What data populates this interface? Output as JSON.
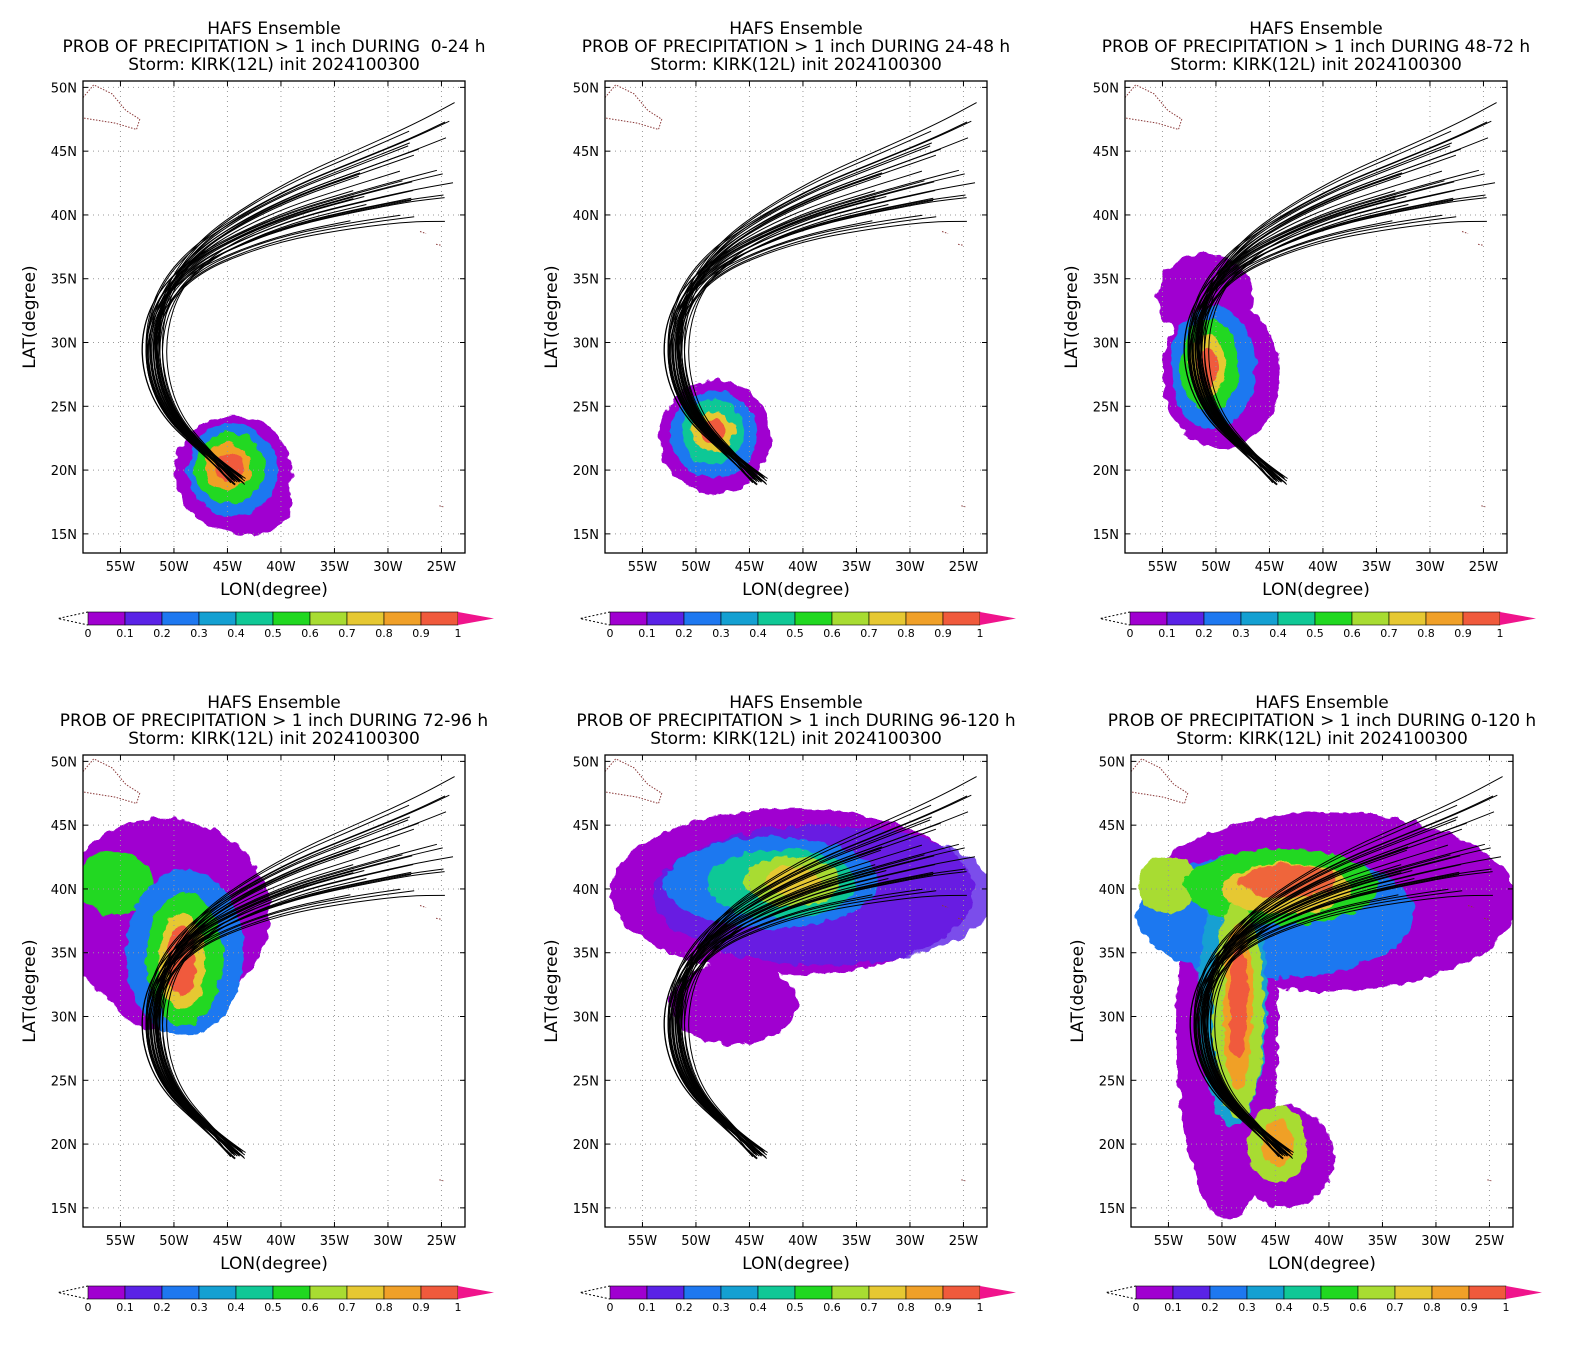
{
  "figure": {
    "colorbar": {
      "ticks": [
        "0",
        "0.1",
        "0.2",
        "0.3",
        "0.4",
        "0.5",
        "0.6",
        "0.7",
        "0.8",
        "0.9",
        "1"
      ],
      "colors": [
        "#a000d0",
        "#5a23e6",
        "#1e78f0",
        "#14a0d2",
        "#10c896",
        "#20d820",
        "#a8dc32",
        "#e6c832",
        "#f0a028",
        "#f05a3c"
      ],
      "over_color": "#f0148c"
    },
    "axes": {
      "xlabel": "LON(degree)",
      "ylabel": "LAT(degree)",
      "xticks": [
        "55W",
        "50W",
        "45W",
        "40W",
        "35W",
        "30W",
        "25W"
      ],
      "yticks": [
        "50N",
        "45N",
        "40N",
        "35N",
        "30N",
        "25N",
        "20N",
        "15N"
      ]
    },
    "panels": [
      {
        "title_line1": "HAFS Ensemble",
        "title_line2": "PROB OF PRECIPITATION > 1 inch DURING  0-24 h",
        "title_line3": "Storm: KIRK(12L) init 2024100300"
      },
      {
        "title_line1": "HAFS Ensemble",
        "title_line2": "PROB OF PRECIPITATION > 1 inch DURING 24-48 h",
        "title_line3": "Storm: KIRK(12L) init 2024100300"
      },
      {
        "title_line1": "HAFS Ensemble",
        "title_line2": "PROB OF PRECIPITATION > 1 inch DURING 48-72 h",
        "title_line3": "Storm: KIRK(12L) init 2024100300"
      },
      {
        "title_line1": "HAFS Ensemble",
        "title_line2": "PROB OF PRECIPITATION > 1 inch DURING 72-96 h",
        "title_line3": "Storm: KIRK(12L) init 2024100300"
      },
      {
        "title_line1": "HAFS Ensemble",
        "title_line2": "PROB OF PRECIPITATION > 1 inch DURING 96-120 h",
        "title_line3": "Storm: KIRK(12L) init 2024100300"
      },
      {
        "title_line1": "HAFS Ensemble",
        "title_line2": "PROB OF PRECIPITATION > 1 inch DURING 0-120 h",
        "title_line3": "Storm: KIRK(12L) init 2024100300"
      }
    ]
  }
}
